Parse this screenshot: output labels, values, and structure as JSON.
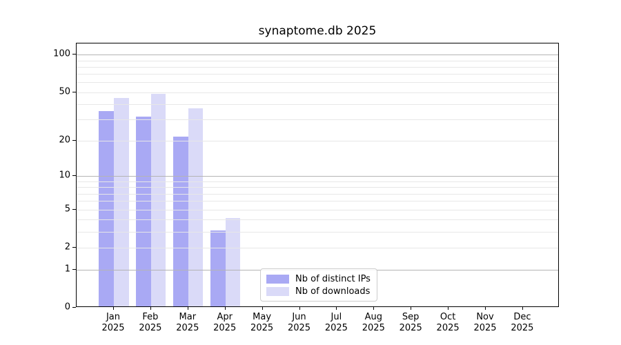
{
  "chart_data": {
    "type": "bar",
    "title": "synaptome.db 2025",
    "yscale": "log1p",
    "ylim": [
      0,
      123
    ],
    "xlabel": "",
    "ylabel": "",
    "grid": true,
    "legend_position": "lower-center",
    "yticks": [
      100,
      50,
      20,
      10,
      5,
      2,
      1,
      0
    ],
    "grid_lines": {
      "major_values": [
        100,
        10,
        1
      ],
      "minor_values": [
        90,
        80,
        70,
        60,
        50,
        40,
        30,
        20,
        9,
        8,
        7,
        6,
        5,
        4,
        3,
        2
      ],
      "major_color": "#b4b4b4",
      "minor_color": "#e7e7e7"
    },
    "categories": [
      "Jan",
      "Feb",
      "Mar",
      "Apr",
      "May",
      "Jun",
      "Jul",
      "Aug",
      "Sep",
      "Oct",
      "Nov",
      "Dec"
    ],
    "year": "2025",
    "series": [
      {
        "name": "Nb of distinct IPs",
        "color": "#a9a9f4",
        "values": [
          34,
          31,
          21,
          3,
          0,
          0,
          0,
          0,
          0,
          0,
          0,
          0
        ]
      },
      {
        "name": "Nb of downloads",
        "color": "#dadaf8",
        "values": [
          44,
          47,
          36,
          4,
          0,
          0,
          0,
          0,
          0,
          0,
          0,
          0
        ]
      }
    ]
  }
}
